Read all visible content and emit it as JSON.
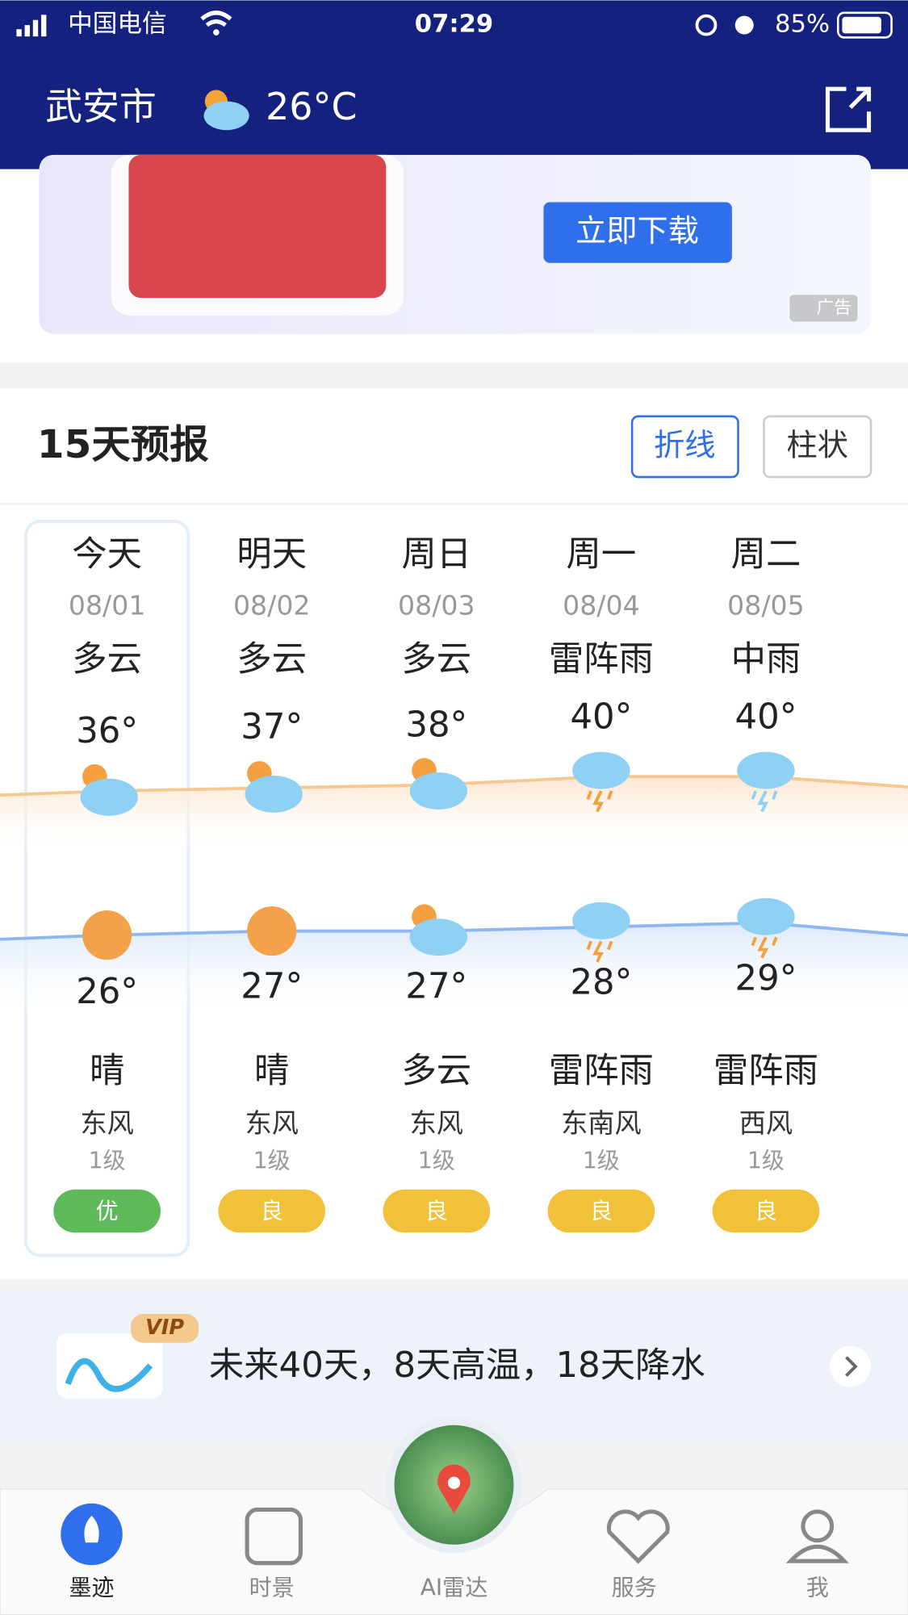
{
  "status": {
    "carrier": "中国电信",
    "time": "07:29",
    "battery": "85%"
  },
  "header": {
    "city": "武安市",
    "temp": "26°C"
  },
  "ad": {
    "button": "立即下载",
    "tag": "广告"
  },
  "forecast": {
    "title": "15天预报",
    "toggles": [
      "折线",
      "柱状"
    ],
    "days": [
      {
        "name": "今天",
        "date": "08/01",
        "day_weather": "多云",
        "high": "36°",
        "low": "26°",
        "night_weather": "晴",
        "wind": "东风",
        "level": "1级",
        "aqi": "优"
      },
      {
        "name": "明天",
        "date": "08/02",
        "day_weather": "多云",
        "high": "37°",
        "low": "27°",
        "night_weather": "晴",
        "wind": "东风",
        "level": "1级",
        "aqi": "良"
      },
      {
        "name": "周日",
        "date": "08/03",
        "day_weather": "多云",
        "high": "38°",
        "low": "27°",
        "night_weather": "多云",
        "wind": "东风",
        "level": "1级",
        "aqi": "良"
      },
      {
        "name": "周一",
        "date": "08/04",
        "day_weather": "雷阵雨",
        "high": "40°",
        "low": "28°",
        "night_weather": "雷阵雨",
        "wind": "东南风",
        "level": "1级",
        "aqi": "良"
      },
      {
        "name": "周二",
        "date": "08/05",
        "day_weather": "中雨",
        "high": "40°",
        "low": "29°",
        "night_weather": "雷阵雨",
        "wind": "西风",
        "level": "1级",
        "aqi": "良"
      }
    ]
  },
  "vip": {
    "badge": "VIP",
    "text": "未来40天，8天高温，18天降水"
  },
  "tabs": [
    "墨迹",
    "时景",
    "AI雷达",
    "服务",
    "我"
  ]
}
